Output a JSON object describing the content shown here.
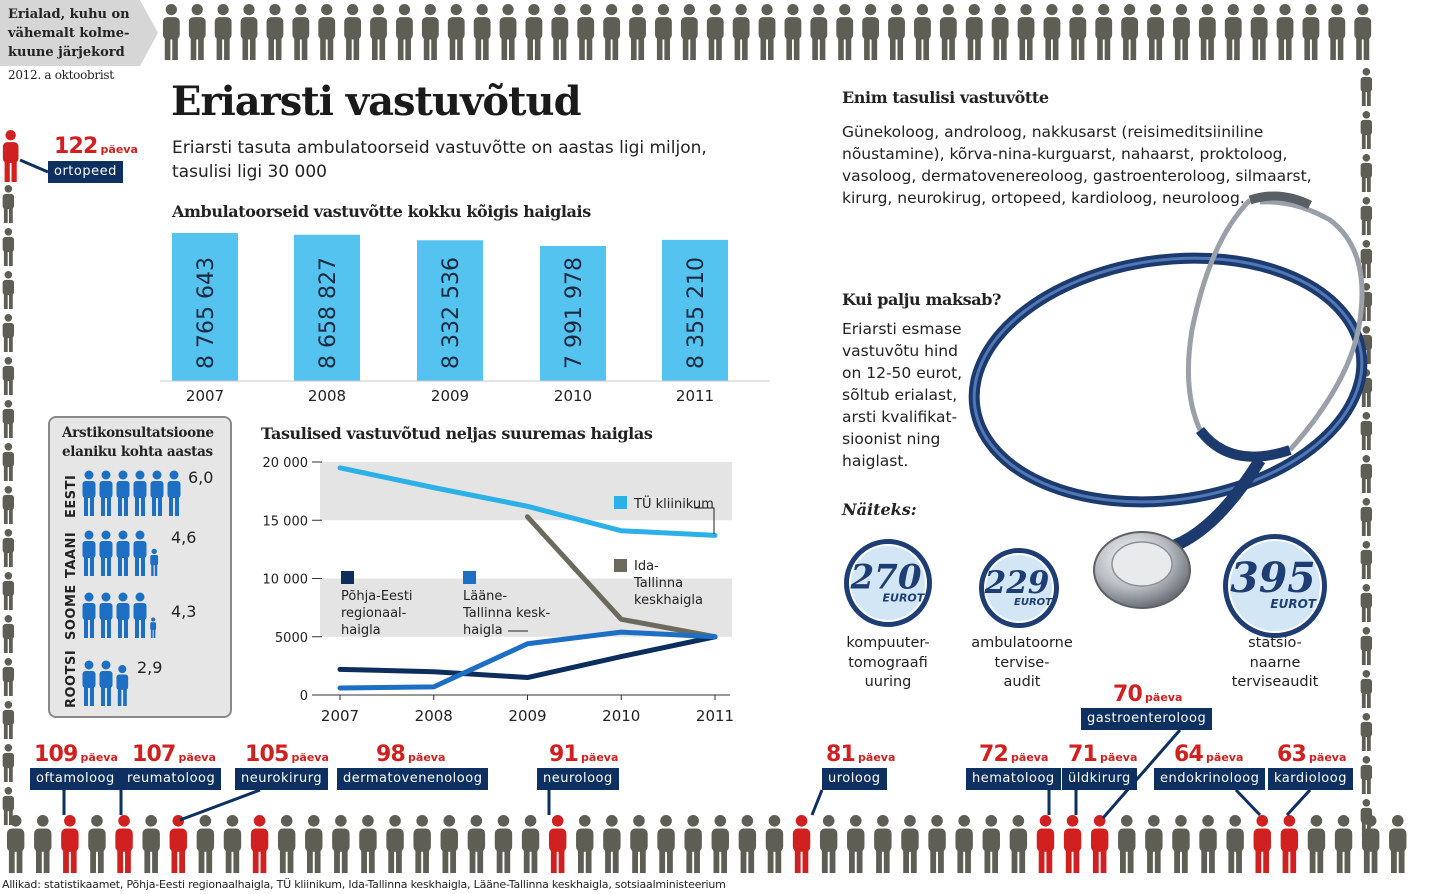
{
  "corner": {
    "title_lines": [
      "Erialad, kuhu on",
      "vähemalt kolme-",
      "kuune järjekord"
    ],
    "date": "2012. a oktoobrist"
  },
  "title": "Eriarsti vastuvõtud",
  "subtitle": "Eriarsti tasuta ambulatoorseid vastuvõtte on aastas ligi miljon, tasulisi ligi 30 000",
  "right": {
    "title": "Enim tasulisi vastuvõtte",
    "text": "Günekoloog, androloog, nakkusarst (reisimeditsiiniline nõustamine), kõrva-nina-kurguarst, nahaarst, proktoloog, vasoloog, dermatovenereoloog, gastroenteroloog, silmaarst, kirurg, neurokirug, ortopeed, kardioloog, neuroloog.",
    "price_title": "Kui palju maksab?",
    "price_text": "Eriarsti esmase vastuvõtu hind on 12-50 eurot, sõltub erialast, arsti kvalifikat- sioonist ning haiglast.",
    "examples_label": "Näiteks:",
    "coins": [
      {
        "value": "270",
        "currency": "EUROT",
        "label_lines": [
          "kompuuter-",
          "tomograafi",
          "uuring"
        ]
      },
      {
        "value": "229",
        "currency": "EUROT",
        "label_lines": [
          "ambulatoorne",
          "tervise-",
          "audit"
        ]
      },
      {
        "value": "395",
        "currency": "EUROT",
        "label_lines": [
          "statsio-",
          "naarne",
          "terviseaudit"
        ]
      }
    ]
  },
  "days_unit": "päeva",
  "waits": [
    {
      "days": "122",
      "spec": "ortopeed"
    },
    {
      "days": "109",
      "spec": "oftamoloog"
    },
    {
      "days": "107",
      "spec": "reumatoloog"
    },
    {
      "days": "105",
      "spec": "neurokirurg"
    },
    {
      "days": "98",
      "spec": "dermatovenenoloog"
    },
    {
      "days": "91",
      "spec": "neuroloog"
    },
    {
      "days": "81",
      "spec": "uroloog"
    },
    {
      "days": "72",
      "spec": "hematoloog"
    },
    {
      "days": "71",
      "spec": "üldkirurg"
    },
    {
      "days": "70",
      "spec": "gastroenteroloog"
    },
    {
      "days": "64",
      "spec": "endokrinoloog"
    },
    {
      "days": "63",
      "spec": "kardioloog"
    }
  ],
  "consult": {
    "title_lines": [
      "Arstikonsultatsioone",
      "elaniku kohta aastas"
    ],
    "rows": [
      {
        "country": "EESTI",
        "value": 6.0,
        "label": "6,0"
      },
      {
        "country": "TAANI",
        "value": 4.6,
        "label": "4,6"
      },
      {
        "country": "SOOME",
        "value": 4.3,
        "label": "4,3"
      },
      {
        "country": "ROOTSI",
        "value": 2.9,
        "label": "2,9"
      }
    ]
  },
  "sources": "Allikad: statistikaamet, Põhja-Eesti regionaalhaigla, TÜ kliinikum, Ida-Tallinna keskhaigla, Lääne-Tallinna keskhaigla, sotsiaalministeerium",
  "colors": {
    "bar": "#55c3ef",
    "tu": "#2bb0e8",
    "ida": "#6d6a5d",
    "pohja": "#0d2e5c",
    "laane": "#1d6fc4",
    "red": "#d0201f",
    "grey_person": "#5e5e55",
    "navy": "#0d3060"
  },
  "chart_data": [
    {
      "type": "bar",
      "title": "Ambulatoorseid vastuvõtte kokku kõigis haiglais",
      "categories": [
        "2007",
        "2008",
        "2009",
        "2010",
        "2011"
      ],
      "values": [
        8765643,
        8658827,
        8332536,
        7991978,
        8355210
      ],
      "value_labels": [
        "8 765 643",
        "8 658 827",
        "8 332 536",
        "7 991 978",
        "8 355 210"
      ],
      "xlabel": "",
      "ylabel": ""
    },
    {
      "type": "line",
      "title": "Tasulised vastuvõtud neljas suuremas haiglas",
      "x": [
        "2007",
        "2008",
        "2009",
        "2010",
        "2011"
      ],
      "ylim": [
        0,
        20000
      ],
      "yticks": [
        0,
        5000,
        10000,
        15000,
        20000
      ],
      "ytick_labels": [
        "0",
        "5000",
        "10 000",
        "15 000",
        "20 000"
      ],
      "series": [
        {
          "name": "TÜ kliinikum",
          "label_lines": [
            "TÜ kliinikum"
          ],
          "color_key": "tu",
          "values": [
            19500,
            17800,
            16200,
            14100,
            13700
          ]
        },
        {
          "name": "Ida-Tallinna keskhaigla",
          "label_lines": [
            "Ida-",
            "Tallinna",
            "keskhaigla"
          ],
          "color_key": "ida",
          "values": [
            null,
            null,
            15300,
            6500,
            5000
          ]
        },
        {
          "name": "Põhja-Eesti regionaalhaigla",
          "label_lines": [
            "Põhja-Eesti",
            "regionaal-",
            "haigla"
          ],
          "color_key": "pohja",
          "values": [
            2200,
            2000,
            1500,
            3300,
            5000
          ]
        },
        {
          "name": "Lääne-Tallinna keskhaigla",
          "label_lines": [
            "Lääne-",
            "Tallinna kesk-",
            "haigla"
          ],
          "color_key": "laane",
          "values": [
            600,
            700,
            4400,
            5400,
            5000
          ]
        }
      ]
    }
  ]
}
